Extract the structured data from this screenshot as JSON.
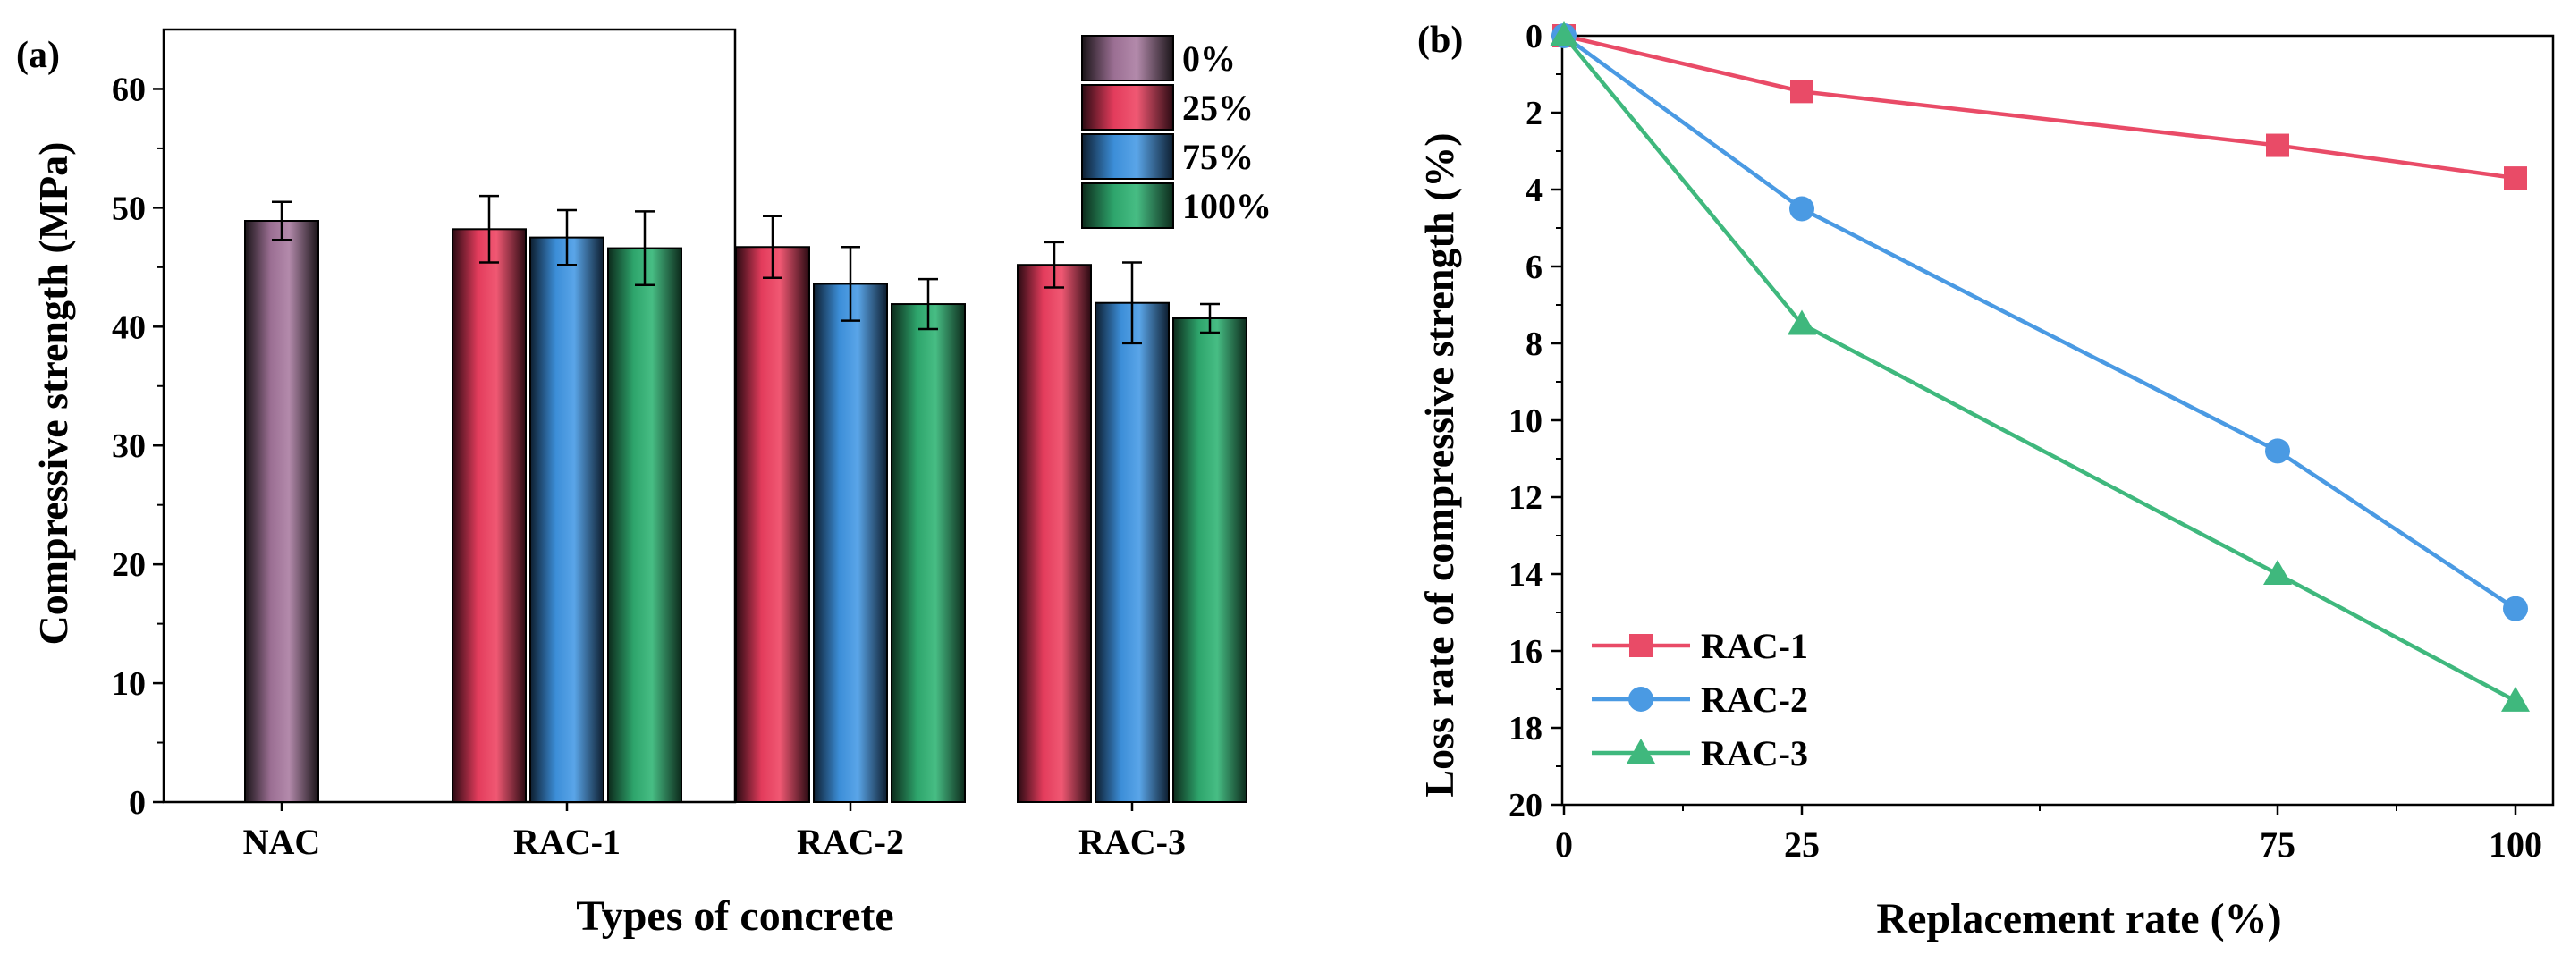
{
  "colors": {
    "0%": "#9b6f93",
    "25%": "#e33c5c",
    "75%": "#3c8ed8",
    "100%": "#2ea56c",
    "RAC-1": "#e94b67",
    "RAC-2": "#4a9ae3",
    "RAC-3": "#3fb87d"
  },
  "chart_data": [
    {
      "type": "bar",
      "panel_label": "(a)",
      "xlabel": "Types of concrete",
      "ylabel": "Compressive strength (MPa)",
      "ylim": [
        0,
        65
      ],
      "yticks": [
        "0",
        "10",
        "20",
        "30",
        "40",
        "50",
        "60"
      ],
      "categories": [
        "NAC",
        "RAC-1",
        "RAC-2",
        "RAC-3"
      ],
      "legend_position": "top-right",
      "series": [
        {
          "name": "0%",
          "values": [
            48.9,
            null,
            null,
            null
          ],
          "errors": [
            1.6,
            null,
            null,
            null
          ]
        },
        {
          "name": "25%",
          "values": [
            null,
            48.2,
            46.7,
            45.2
          ],
          "errors": [
            null,
            2.8,
            2.6,
            1.9
          ]
        },
        {
          "name": "75%",
          "values": [
            null,
            47.5,
            43.6,
            42.0
          ],
          "errors": [
            null,
            2.3,
            3.1,
            3.4
          ]
        },
        {
          "name": "100%",
          "values": [
            null,
            46.6,
            41.9,
            40.7
          ],
          "errors": [
            null,
            3.1,
            2.1,
            1.2
          ]
        }
      ]
    },
    {
      "type": "line",
      "panel_label": "(b)",
      "xlabel": "Replacement rate (%)",
      "ylabel": "Loss rate of compressive strength (%)",
      "x": [
        0,
        25,
        75,
        100
      ],
      "xticks": [
        "0",
        "25",
        "75",
        "100"
      ],
      "ylim": [
        0,
        20
      ],
      "y_inverted": true,
      "yticks": [
        "0",
        "2",
        "4",
        "6",
        "8",
        "10",
        "12",
        "14",
        "16",
        "18",
        "20"
      ],
      "legend_position": "bottom-left",
      "series": [
        {
          "name": "RAC-1",
          "marker": "square",
          "values": [
            0,
            1.45,
            2.85,
            3.7
          ]
        },
        {
          "name": "RAC-2",
          "marker": "circle",
          "values": [
            0,
            4.5,
            10.8,
            14.9
          ]
        },
        {
          "name": "RAC-3",
          "marker": "triangle",
          "values": [
            0,
            7.5,
            14.0,
            17.3
          ]
        }
      ]
    }
  ]
}
